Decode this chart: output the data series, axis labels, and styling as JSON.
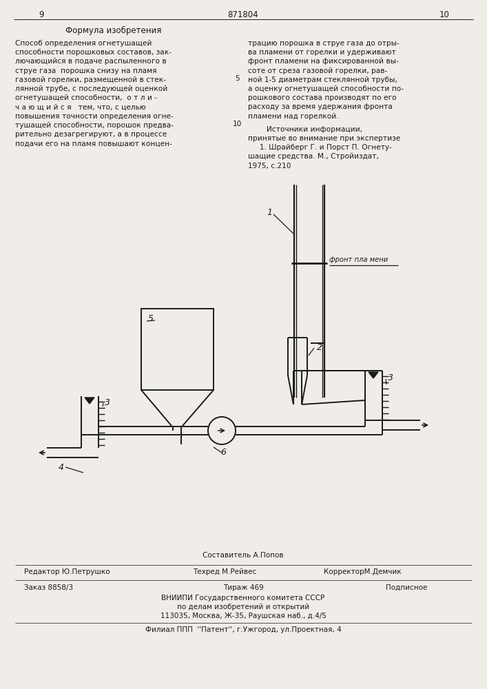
{
  "bg_color": "#f0ede8",
  "line_color": "#1a1a1a",
  "text_color": "#1a1a1a",
  "page_num_left": "9",
  "page_num_center": "871804",
  "page_num_right": "10",
  "section_title": "Формула изобретения",
  "label_front": "фронт пла мени",
  "footer_sestavitel": "Составитель А.Попов",
  "footer_redaktor": "Редактор Ю.Петрушко",
  "footer_tehred": "Техред М.Рейвес",
  "footer_korrektor": "КорректорМ.Демчик",
  "footer_order": "Заказ 8858/3",
  "footer_tirazh": "Тираж 469",
  "footer_podp": "Подписное",
  "footer_vniip1": "ВНИИПИ Государственного комитета СССР",
  "footer_vniip2": "по делам изобретений и открытий",
  "footer_vniip3": "113035, Москва, Ж-35, Раушская наб., д.4/5",
  "footer_filial": "Филиал ППП  ''Патент'', г.Ужгород, ул.Проектная, 4",
  "line_num_5": "5",
  "line_num_10": "10"
}
